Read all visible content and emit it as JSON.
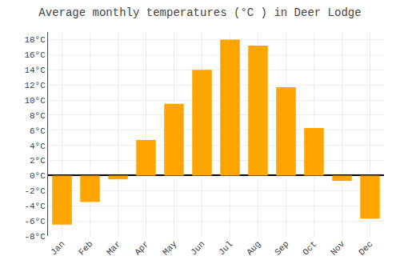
{
  "chart_data": {
    "type": "bar",
    "title": "Average monthly temperatures (°C ) in Deer Lodge",
    "categories": [
      "Jan",
      "Feb",
      "Mar",
      "Apr",
      "May",
      "Jun",
      "Jul",
      "Aug",
      "Sep",
      "Oct",
      "Nov",
      "Dec"
    ],
    "values": [
      -6.5,
      -3.5,
      -0.5,
      4.7,
      9.5,
      14.0,
      18.0,
      17.2,
      11.7,
      6.3,
      -0.7,
      -5.7
    ],
    "color": "#FFA500",
    "ylim": [
      -8,
      19
    ],
    "yticks": [
      {
        "value": -8,
        "label": "-8°C"
      },
      {
        "value": -6,
        "label": "-6°C"
      },
      {
        "value": -4,
        "label": "-4°C"
      },
      {
        "value": -2,
        "label": "-2°C"
      },
      {
        "value": 0,
        "label": "0°C"
      },
      {
        "value": 2,
        "label": "2°C"
      },
      {
        "value": 4,
        "label": "4°C"
      },
      {
        "value": 6,
        "label": "6°C"
      },
      {
        "value": 8,
        "label": "8°C"
      },
      {
        "value": 10,
        "label": "10°C"
      },
      {
        "value": 12,
        "label": "12°C"
      },
      {
        "value": 14,
        "label": "14°C"
      },
      {
        "value": 16,
        "label": "16°C"
      },
      {
        "value": 18,
        "label": "18°C"
      }
    ],
    "grid": true
  }
}
